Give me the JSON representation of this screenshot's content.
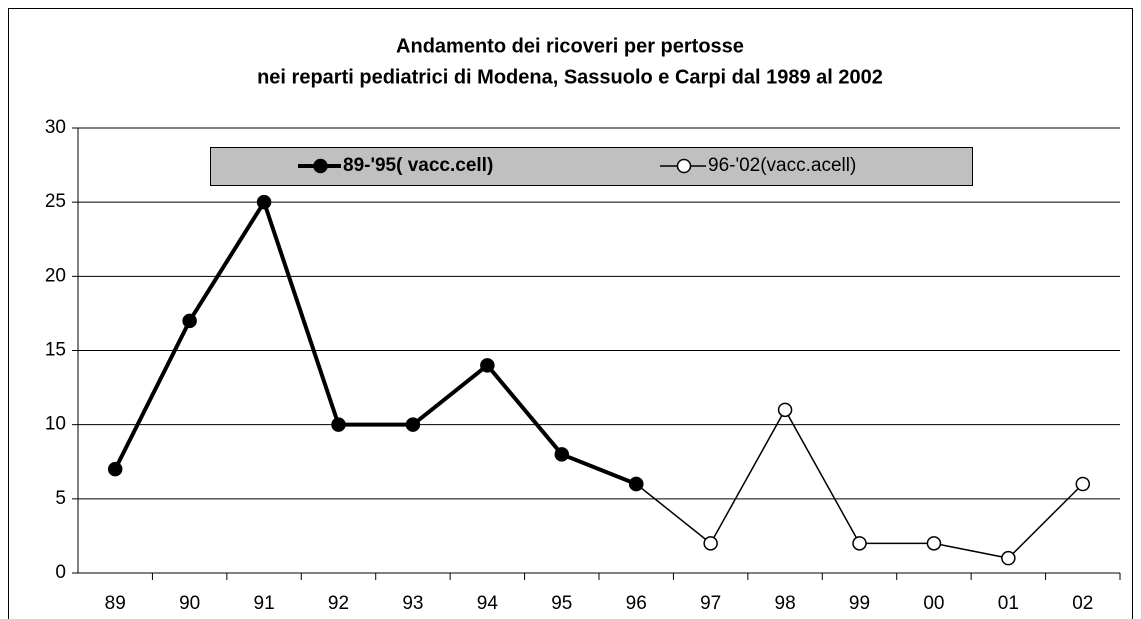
{
  "chart_data": {
    "type": "line",
    "title": [
      "Andamento dei ricoveri per pertosse",
      "nei reparti pediatrici di Modena, Sassuolo e Carpi dal 1989 al 2002"
    ],
    "categories": [
      "89",
      "90",
      "91",
      "92",
      "93",
      "94",
      "95",
      "96",
      "97",
      "98",
      "99",
      "00",
      "01",
      "02"
    ],
    "series": [
      {
        "name": "89-'95( vacc.cell)",
        "color": "#000000",
        "marker_fill": "#000000",
        "values": [
          7,
          17,
          25,
          10,
          10,
          14,
          8,
          6,
          null,
          null,
          null,
          null,
          null,
          null
        ]
      },
      {
        "name": "96-'02(vacc.acell)",
        "color": "#000000",
        "marker_fill": "#ffffff",
        "values": [
          null,
          null,
          null,
          null,
          null,
          null,
          null,
          6,
          2,
          11,
          2,
          2,
          1,
          6
        ]
      }
    ],
    "ylim": [
      0,
      30
    ],
    "yticks": [
      0,
      5,
      10,
      15,
      20,
      25,
      30
    ],
    "grid": true,
    "legend": "top",
    "legend_background": "#c0c0c0"
  }
}
